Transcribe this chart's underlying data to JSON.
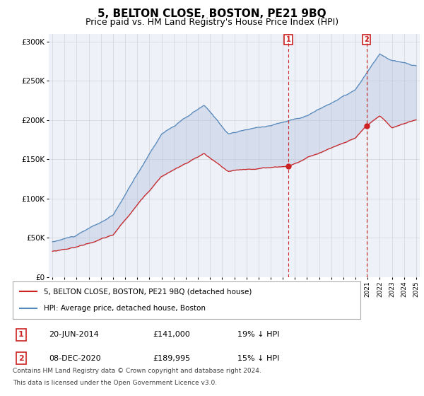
{
  "title": "5, BELTON CLOSE, BOSTON, PE21 9BQ",
  "subtitle": "Price paid vs. HM Land Registry's House Price Index (HPI)",
  "ylim": [
    0,
    310000
  ],
  "yticks": [
    0,
    50000,
    100000,
    150000,
    200000,
    250000,
    300000
  ],
  "ytick_labels": [
    "£0",
    "£50K",
    "£100K",
    "£150K",
    "£200K",
    "£250K",
    "£300K"
  ],
  "hpi_color": "#5588bb",
  "hpi_fill_color": "#aabbdd",
  "price_color": "#cc2222",
  "sale1_year": 2014.458,
  "sale1_price": 141000,
  "sale2_year": 2020.917,
  "sale2_price": 189995,
  "legend_entry1": "5, BELTON CLOSE, BOSTON, PE21 9BQ (detached house)",
  "legend_entry2": "HPI: Average price, detached house, Boston",
  "row1_num": "1",
  "row1_date": "20-JUN-2014",
  "row1_price": "£141,000",
  "row1_pct": "19% ↓ HPI",
  "row2_num": "2",
  "row2_date": "08-DEC-2020",
  "row2_price": "£189,995",
  "row2_pct": "15% ↓ HPI",
  "footer_line1": "Contains HM Land Registry data © Crown copyright and database right 2024.",
  "footer_line2": "This data is licensed under the Open Government Licence v3.0.",
  "plot_bg_color": "#eef2f8",
  "grid_color": "#cccccc",
  "title_fontsize": 11,
  "subtitle_fontsize": 9,
  "xstart": 1995,
  "xend": 2025
}
